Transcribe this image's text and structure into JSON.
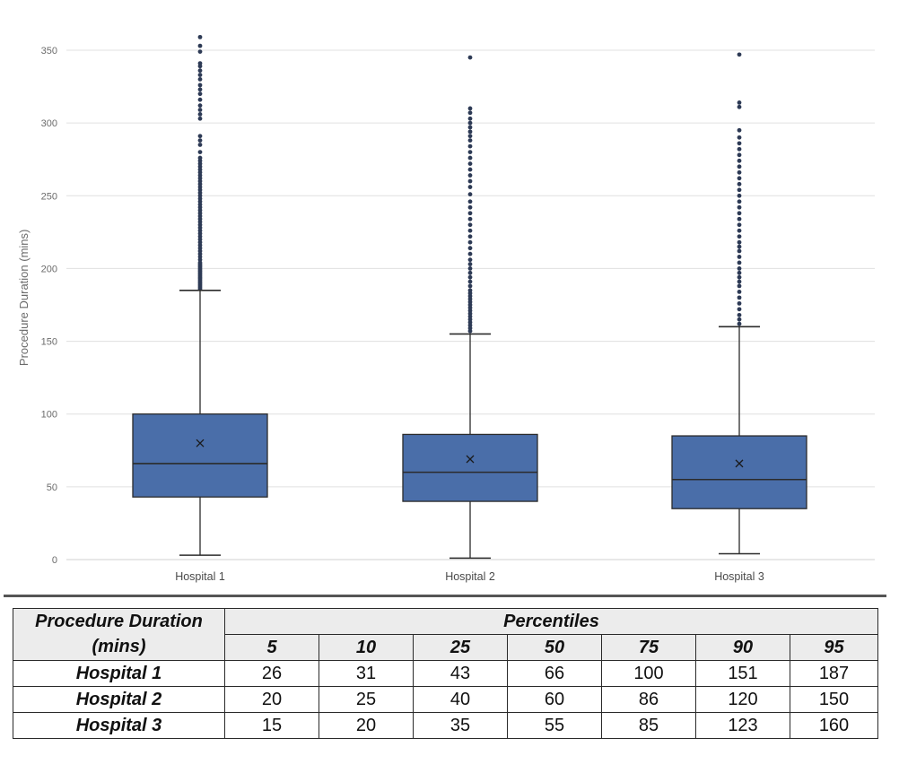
{
  "chart_data": {
    "type": "box",
    "ylabel": "Procedure Duration (mins)",
    "xlabel": "",
    "ylim": [
      0,
      360
    ],
    "yticks": [
      0,
      50,
      100,
      150,
      200,
      250,
      300,
      350
    ],
    "grid": true,
    "colors": {
      "box": "#4a6ea9",
      "outline": "#2b2b2b",
      "outlier": "#2d3a55",
      "grid": "#e0e0e0",
      "axis_text": "#6b6b6b"
    },
    "series": [
      {
        "name": "Hospital 1",
        "whisker_low": 3,
        "q1": 43,
        "median": 66,
        "q3": 100,
        "whisker_high": 185,
        "mean": 80,
        "outliers": [
          186,
          187,
          188,
          189,
          190,
          191,
          192,
          193,
          194,
          195,
          196,
          197,
          198,
          199,
          200,
          201,
          202,
          203,
          204,
          206,
          208,
          210,
          212,
          214,
          216,
          218,
          220,
          222,
          224,
          226,
          228,
          230,
          232,
          234,
          236,
          238,
          240,
          242,
          244,
          246,
          248,
          250,
          252,
          254,
          256,
          258,
          260,
          262,
          264,
          266,
          268,
          270,
          272,
          274,
          276,
          280,
          285,
          288,
          291,
          303,
          306,
          309,
          312,
          316,
          320,
          323,
          326,
          330,
          333,
          336,
          339,
          341,
          349,
          353,
          359
        ]
      },
      {
        "name": "Hospital 2",
        "whisker_low": 1,
        "q1": 40,
        "median": 60,
        "q3": 86,
        "whisker_high": 155,
        "mean": 69,
        "outliers": [
          157,
          159,
          161,
          163,
          165,
          167,
          169,
          171,
          173,
          175,
          177,
          179,
          181,
          183,
          185,
          188,
          191,
          194,
          197,
          200,
          203,
          206,
          210,
          214,
          218,
          222,
          226,
          230,
          234,
          238,
          242,
          246,
          251,
          256,
          260,
          264,
          268,
          272,
          276,
          280,
          284,
          288,
          291,
          294,
          297,
          300,
          303,
          307,
          310,
          345
        ]
      },
      {
        "name": "Hospital 3",
        "whisker_low": 4,
        "q1": 35,
        "median": 55,
        "q3": 85,
        "whisker_high": 160,
        "mean": 66,
        "outliers": [
          162,
          165,
          168,
          172,
          176,
          180,
          184,
          188,
          191,
          194,
          197,
          200,
          204,
          208,
          212,
          215,
          218,
          222,
          226,
          230,
          234,
          238,
          242,
          246,
          250,
          254,
          258,
          262,
          266,
          270,
          274,
          278,
          282,
          286,
          290,
          295,
          311,
          314,
          347
        ]
      }
    ]
  },
  "table": {
    "header_label_line1": "Procedure Duration",
    "header_label_line2": "(mins)",
    "group_label": "Percentiles",
    "percentiles": [
      "5",
      "10",
      "25",
      "50",
      "75",
      "90",
      "95"
    ],
    "rows": [
      {
        "label": "Hospital 1",
        "values": [
          "26",
          "31",
          "43",
          "66",
          "100",
          "151",
          "187"
        ]
      },
      {
        "label": "Hospital 2",
        "values": [
          "20",
          "25",
          "40",
          "60",
          "86",
          "120",
          "150"
        ]
      },
      {
        "label": "Hospital 3",
        "values": [
          "15",
          "20",
          "35",
          "55",
          "85",
          "123",
          "160"
        ]
      }
    ]
  }
}
